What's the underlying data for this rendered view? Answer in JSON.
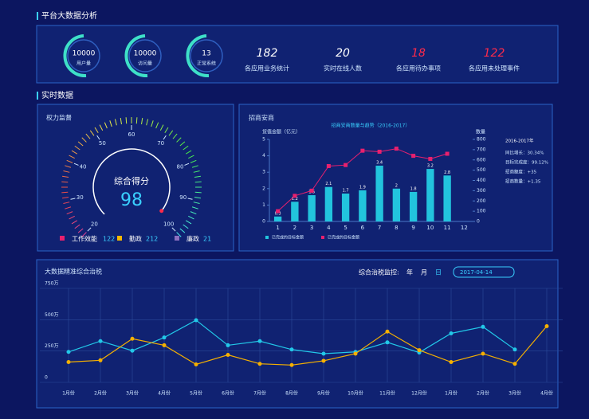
{
  "header": {
    "title": "平台大数据分析"
  },
  "summary": {
    "rings": [
      {
        "value": 10000,
        "label": "用户量"
      },
      {
        "value": 10000,
        "label": "访问量"
      },
      {
        "value": 13,
        "label": "正常系统"
      }
    ],
    "stats": [
      {
        "value": 182,
        "label": "各应用业务统计",
        "color": "#ffffff"
      },
      {
        "value": 20,
        "label": "实时在线人数",
        "color": "#ffffff"
      },
      {
        "value": 18,
        "label": "各应用待办事项",
        "color": "#ff2a4a"
      },
      {
        "value": 122,
        "label": "各应用未处理事件",
        "color": "#ff2a4a"
      }
    ]
  },
  "section_title": "实时数据",
  "chart_data": [
    {
      "type": "gauge",
      "title": "权力监督",
      "center_label": "综合得分",
      "value": 98,
      "ylim": [
        20,
        100
      ],
      "yticks": [
        20,
        30,
        40,
        50,
        60,
        70,
        80,
        90,
        100
      ],
      "legend": [
        {
          "name": "工作效能",
          "value": 122,
          "color": "#e8206e"
        },
        {
          "name": "勤政",
          "value": 212,
          "color": "#f5b800"
        },
        {
          "name": "廉政",
          "value": 21,
          "color": "#8a6fc0"
        }
      ]
    },
    {
      "type": "bar_line",
      "title": "招商安商",
      "subtitle": "招商安商数量与趋势（2016-2017）",
      "ylabel": "货值金额（亿元）",
      "y2label": "数量",
      "categories": [
        "1",
        "2",
        "3",
        "4",
        "5",
        "6",
        "7",
        "8",
        "9",
        "10",
        "11",
        "12"
      ],
      "series": [
        {
          "name": "已完成的目标金额",
          "color": "#22c4dd",
          "values": [
            0.3,
            1.2,
            1.6,
            2.1,
            1.7,
            1.9,
            3.4,
            2.0,
            1.8,
            3.2,
            2.8,
            null
          ]
        },
        {
          "name": "已完成的目标金额",
          "color": "#e8206e",
          "axis": "y2",
          "values": [
            100,
            250,
            300,
            540,
            550,
            690,
            680,
            710,
            640,
            610,
            660,
            null
          ]
        }
      ],
      "ylim": [
        0,
        5
      ],
      "yticks": [
        0,
        1,
        2,
        3,
        4,
        5
      ],
      "y2lim": [
        0,
        800
      ],
      "y2ticks": [
        0,
        100,
        200,
        300,
        400,
        500,
        600,
        700,
        800
      ],
      "notes": [
        "2016-2017年",
        "同比增长：30.34%",
        "目标完成度：99.12%",
        "招商额度：+35",
        "招商数量：+1.35"
      ]
    },
    {
      "type": "line",
      "title": "大数据精准综合治税",
      "controls": {
        "label": "综合治税监控:",
        "options": [
          "年",
          "月",
          "日"
        ],
        "date": "2017-04-14"
      },
      "categories": [
        "1月份",
        "2月份",
        "3月份",
        "4月份",
        "5月份",
        "6月份",
        "7月份",
        "8月份",
        "9月份",
        "10月份",
        "11月份",
        "12月份",
        "1月份",
        "2月份",
        "3月份",
        "4月份"
      ],
      "series": [
        {
          "color": "#22c8e8",
          "values": [
            243,
            329,
            253,
            358,
            496,
            296,
            329,
            262,
            229,
            243,
            319,
            238,
            391,
            443,
            262,
            null
          ]
        },
        {
          "color": "#f5b000",
          "values": [
            162,
            176,
            348,
            296,
            143,
            219,
            148,
            138,
            172,
            229,
            405,
            257,
            162,
            229,
            148,
            448
          ]
        }
      ],
      "ylim": [
        0,
        750
      ],
      "yticks": [
        0,
        {
          "value": 250,
          "label": "250万"
        },
        {
          "value": 500,
          "label": "500万"
        },
        {
          "value": 750,
          "label": "750万"
        }
      ]
    }
  ]
}
